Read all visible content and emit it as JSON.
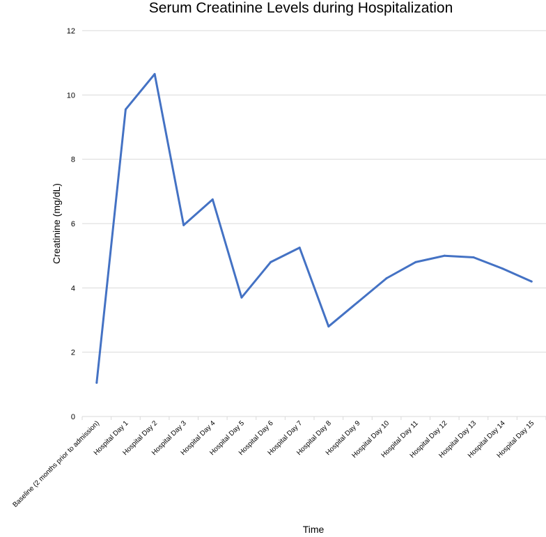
{
  "chart_data": {
    "type": "line",
    "title": "Serum Creatinine Levels during Hospitalization",
    "xlabel": "Time",
    "ylabel": "Creatinine (mg/dL)",
    "ylim": [
      0,
      12
    ],
    "yticks": [
      "0",
      "2",
      "4",
      "6",
      "8",
      "10",
      "12"
    ],
    "grid": true,
    "legend": "none",
    "categories": [
      "Baseline (2 months prior to admission)",
      "Hospital Day 1",
      "Hospital Day 2",
      "Hospital Day 3",
      "Hospital Day 4",
      "Hospital Day 5",
      "Hospital Day 6",
      "Hospital Day 7",
      "Hospital Day 8",
      "Hospital Day 9",
      "Hospital Day 10",
      "Hospital Day 11",
      "Hospital Day 12",
      "Hospital Day 13",
      "Hospital Day 14",
      "Hospital Day 15"
    ],
    "series": [
      {
        "values": [
          1.05,
          9.55,
          10.65,
          5.95,
          6.75,
          3.7,
          4.8,
          5.25,
          2.8,
          3.55,
          4.3,
          4.8,
          5.0,
          4.95,
          4.6,
          4.2
        ]
      }
    ],
    "colors": {
      "line": "#4472c4",
      "grid": "#d9d9d9",
      "text": "#000000"
    }
  }
}
